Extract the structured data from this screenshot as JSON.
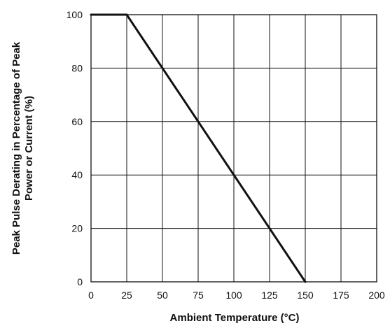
{
  "chart_data": {
    "type": "line",
    "title": "",
    "xlabel": "Ambient Temperature (°C)",
    "ylabel_lines": [
      "Peak Pulse Derating in Percentage of Peak",
      "Power or Current (%)"
    ],
    "xlim": [
      0,
      200
    ],
    "ylim": [
      0,
      100
    ],
    "x_ticks": [
      0,
      25,
      50,
      75,
      100,
      125,
      150,
      175,
      200
    ],
    "y_ticks": [
      0,
      20,
      40,
      60,
      80,
      100
    ],
    "x_tick_labels": [
      "0",
      "25",
      "50",
      "75",
      "100",
      "125",
      "150",
      "175",
      "200"
    ],
    "y_tick_labels": [
      "0",
      "20",
      "40",
      "60",
      "80",
      "100"
    ],
    "grid": true,
    "legend": "none",
    "series": [
      {
        "x": [
          0,
          25,
          150
        ],
        "y": [
          100,
          100,
          0
        ]
      }
    ],
    "colors": {
      "line": "#111111",
      "grid": "#111111",
      "frame": "#111111"
    }
  }
}
